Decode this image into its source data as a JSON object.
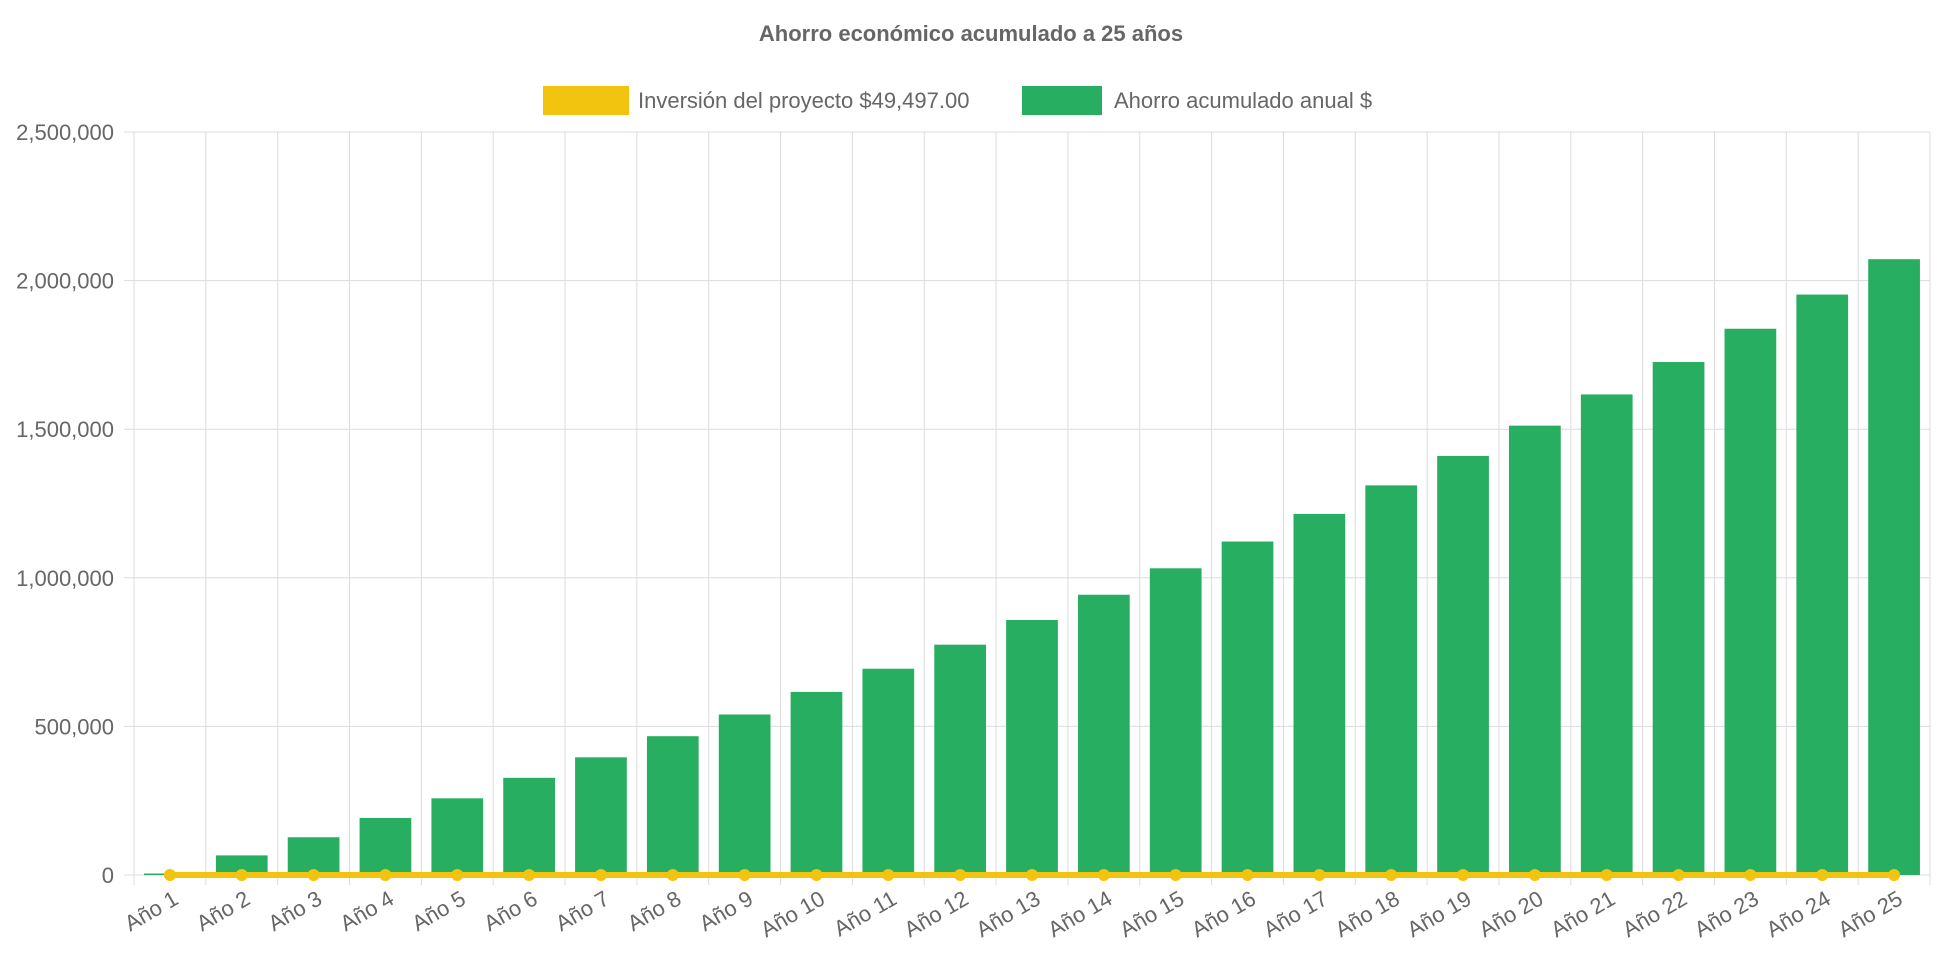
{
  "chart_data": {
    "type": "bar",
    "title": "Ahorro económico acumulado a 25 años",
    "categories": [
      "Año 1",
      "Año 2",
      "Año 3",
      "Año 4",
      "Año 5",
      "Año 6",
      "Año 7",
      "Año 8",
      "Año 9",
      "Año 10",
      "Año 11",
      "Año 12",
      "Año 13",
      "Año 14",
      "Año 15",
      "Año 16",
      "Año 17",
      "Año 18",
      "Año 19",
      "Año 20",
      "Año 21",
      "Año 22",
      "Año 23",
      "Año 24",
      "Año 25"
    ],
    "series": [
      {
        "name": "Inversión del proyecto $49,497.00",
        "type": "line",
        "color": "#F2C40F",
        "values": [
          0,
          0,
          0,
          0,
          0,
          0,
          0,
          0,
          0,
          0,
          0,
          0,
          0,
          0,
          0,
          0,
          0,
          0,
          0,
          0,
          0,
          0,
          0,
          0,
          0
        ]
      },
      {
        "name": "Ahorro acumulado anual $",
        "type": "bar",
        "color": "#27AE60",
        "values": [
          5000,
          66000,
          127000,
          192000,
          258000,
          327000,
          396000,
          467000,
          540000,
          616000,
          694000,
          775000,
          858000,
          943000,
          1032000,
          1122000,
          1215000,
          1311000,
          1410000,
          1512000,
          1617000,
          1726000,
          1838000,
          1953000,
          2072000
        ]
      }
    ],
    "xlabel": "",
    "ylabel": "",
    "ylim": [
      0,
      2500000
    ],
    "yticks": [
      0,
      500000,
      1000000,
      1500000,
      2000000,
      2500000
    ],
    "ytick_labels": [
      "0",
      "500,000",
      "1,000,000",
      "1,500,000",
      "2,000,000",
      "2,500,000"
    ],
    "grid": true,
    "legend_position": "top-center"
  }
}
